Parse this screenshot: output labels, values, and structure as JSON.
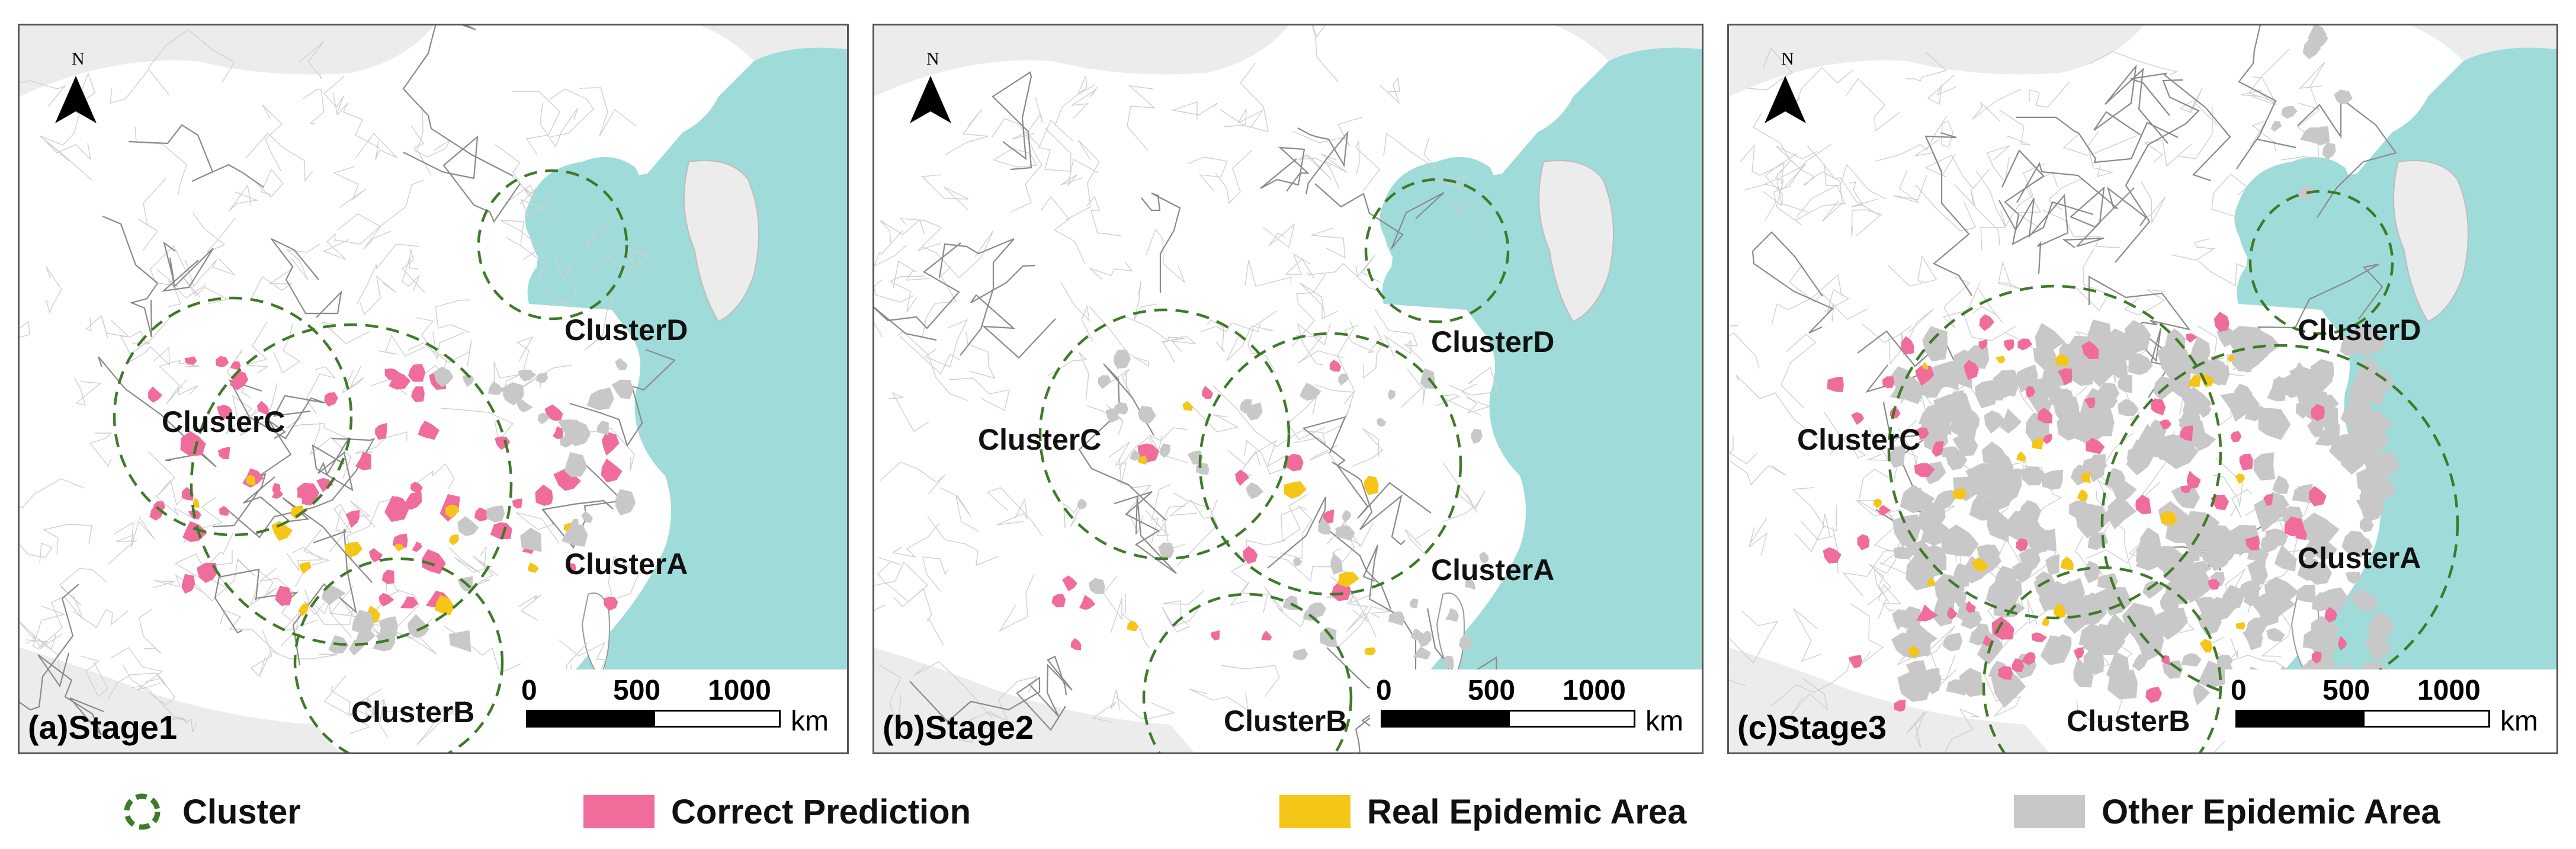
{
  "panels": [
    {
      "label": "(a)Stage1",
      "clusters": [
        "ClusterA",
        "ClusterB",
        "ClusterC",
        "ClusterD"
      ]
    },
    {
      "label": "(b)Stage2",
      "clusters": [
        "ClusterA",
        "ClusterB",
        "ClusterC",
        "ClusterD"
      ]
    },
    {
      "label": "(c)Stage3",
      "clusters": [
        "ClusterA",
        "ClusterB",
        "ClusterC",
        "ClusterD"
      ]
    }
  ],
  "north_label": "N",
  "scale": {
    "ticks": [
      "0",
      "500",
      "1000"
    ],
    "unit": "km"
  },
  "legend": {
    "cluster": "Cluster",
    "correct": "Correct Prediction",
    "real": "Real Epidemic Area",
    "other": "Other Epidemic Area"
  },
  "colors": {
    "sea": "#9fdcd9",
    "land": "#ffffff",
    "foreign_land": "#ececec",
    "correct_prediction": "#f06c9b",
    "real_epidemic": "#f5c518",
    "other_epidemic": "#c8c8c8",
    "cluster_ring": "#3f7a2a"
  }
}
